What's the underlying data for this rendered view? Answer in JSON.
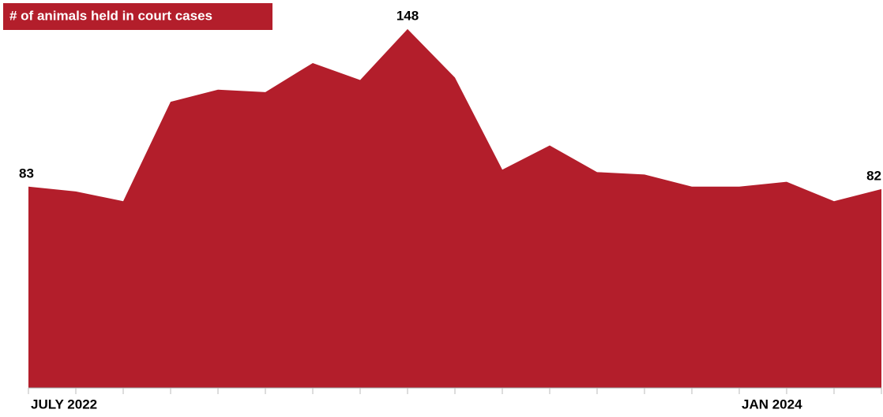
{
  "chart_data": {
    "type": "area",
    "title": "# of animals held in court cases",
    "categories": [
      "JULY 2022",
      null,
      null,
      null,
      null,
      null,
      null,
      null,
      null,
      null,
      null,
      null,
      null,
      null,
      null,
      "JAN 2024",
      null,
      null,
      null
    ],
    "values": [
      83,
      81,
      77,
      118,
      123,
      122,
      134,
      127,
      148,
      128,
      90,
      100,
      89,
      88,
      83,
      83,
      85,
      77,
      82
    ],
    "color": "#b31e2b",
    "ylim": [
      0,
      160
    ]
  }
}
